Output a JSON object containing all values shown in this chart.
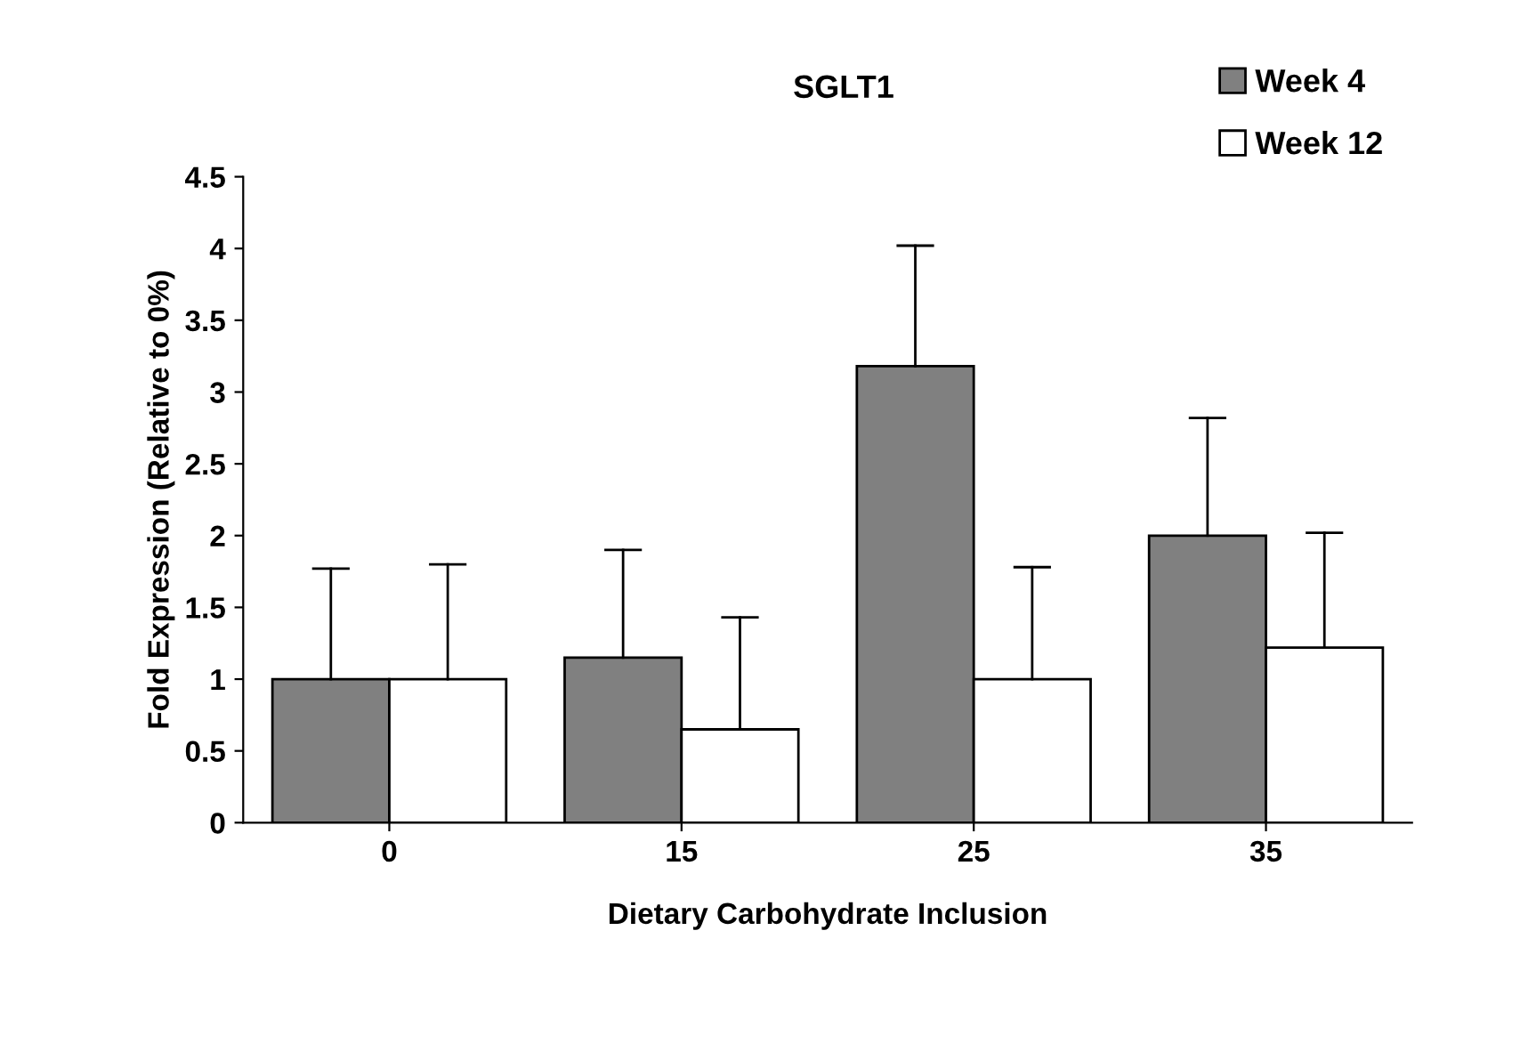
{
  "chart_data": {
    "type": "bar",
    "title": "SGLT1",
    "xlabel": "Dietary Carbohydrate Inclusion",
    "ylabel": "Fold Expression (Relative to 0%)",
    "categories": [
      "0",
      "15",
      "25",
      "35"
    ],
    "series": [
      {
        "name": "Week 4",
        "color": "#808080",
        "values": [
          1.0,
          1.15,
          3.18,
          2.0
        ],
        "errors": [
          [
            1.0,
            1.77
          ],
          [
            1.15,
            1.9
          ],
          [
            3.18,
            4.02
          ],
          [
            2.0,
            2.82
          ]
        ]
      },
      {
        "name": "Week 12",
        "color": "#ffffff",
        "values": [
          1.0,
          0.65,
          1.0,
          1.22
        ],
        "errors": [
          [
            1.0,
            1.8
          ],
          [
            0.65,
            1.43
          ],
          [
            1.0,
            1.78
          ],
          [
            1.22,
            2.02
          ]
        ]
      }
    ],
    "ylim": [
      0,
      4.5
    ],
    "yticks": [
      0,
      0.5,
      1,
      1.5,
      2,
      2.5,
      3,
      3.5,
      4,
      4.5
    ],
    "grid": false,
    "legend": "top right"
  }
}
